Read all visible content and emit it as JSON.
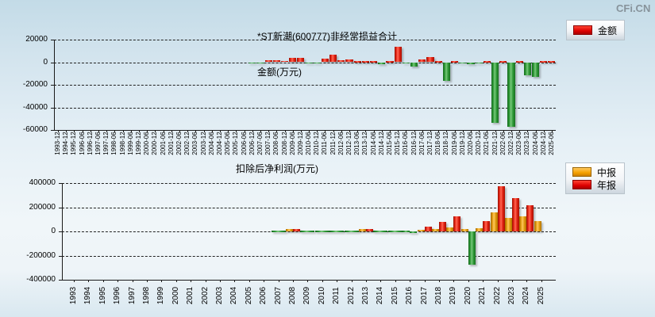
{
  "logo_text": "CFi.CN",
  "colors": {
    "positive_bar": "#dd1100",
    "negative_bar": "#2e8b2e",
    "interim_bar": "#ffaa00",
    "grid": "#222222",
    "logo": "#87939b"
  },
  "chart_data": [
    {
      "type": "bar",
      "title": "*ST新潮(600777)非经常损益合计",
      "subtitle": "金额(万元)",
      "unit": "万元",
      "legend": [
        {
          "label": "金额",
          "color": "#ee1111"
        }
      ],
      "legend_position": "top-right",
      "grid": "horizontal-dashed",
      "ylim": [
        -60000,
        20000
      ],
      "yticks": [
        "20000",
        "0",
        "-20000",
        "-40000",
        "-60000"
      ],
      "categories": [
        "1993-12",
        "1994-12",
        "1995-12",
        "1996-06",
        "1996-12",
        "1997-06",
        "1997-12",
        "1998-06",
        "1998-12",
        "1999-06",
        "1999-12",
        "2000-06",
        "2000-12",
        "2001-06",
        "2001-12",
        "2002-06",
        "2002-12",
        "2003-06",
        "2003-12",
        "2004-06",
        "2004-12",
        "2005-06",
        "2005-12",
        "2006-06",
        "2006-12",
        "2007-06",
        "2007-12",
        "2008-06",
        "2008-12",
        "2009-06",
        "2009-12",
        "2010-06",
        "2010-12",
        "2011-06",
        "2011-12",
        "2012-06",
        "2012-12",
        "2013-06",
        "2013-12",
        "2014-06",
        "2014-12",
        "2015-06",
        "2015-12",
        "2016-06",
        "2016-12",
        "2017-06",
        "2017-12",
        "2018-06",
        "2018-12",
        "2019-06",
        "2019-12",
        "2020-06",
        "2020-12",
        "2021-06",
        "2021-12",
        "2022-06",
        "2022-12",
        "2023-06",
        "2023-12",
        "2024-06",
        "2024-12",
        "2025-06"
      ],
      "values": [
        null,
        null,
        null,
        null,
        null,
        null,
        null,
        null,
        null,
        null,
        null,
        null,
        null,
        null,
        null,
        null,
        null,
        null,
        null,
        null,
        null,
        null,
        null,
        null,
        -200,
        -300,
        1500,
        1500,
        1200,
        4200,
        4200,
        -1400,
        -1400,
        3500,
        7000,
        1600,
        2800,
        500,
        300,
        300,
        -1500,
        500,
        14000,
        -300,
        -4200,
        2800,
        4400,
        700,
        -16700,
        500,
        -400,
        -1500,
        -400,
        800,
        -53500,
        800,
        -57000,
        800,
        -11300,
        -13100,
        800,
        500
      ]
    },
    {
      "type": "bar",
      "title": "扣除后净利润(万元)",
      "unit": "万元",
      "legend": [
        {
          "label": "中报",
          "color": "#ffaa00"
        },
        {
          "label": "年报",
          "color": "#ee1111"
        }
      ],
      "legend_position": "top-right",
      "grid": "horizontal-dashed",
      "ylim": [
        -400000,
        400000
      ],
      "yticks": [
        "400000",
        "200000",
        "0",
        "-200000",
        "-400000"
      ],
      "categories": [
        "1993",
        "1994",
        "1995",
        "1996",
        "1997",
        "1998",
        "1999",
        "2000",
        "2001",
        "2002",
        "2003",
        "2004",
        "2005",
        "2006",
        "2007",
        "2008",
        "2009",
        "2010",
        "2011",
        "2012",
        "2013",
        "2014",
        "2015",
        "2016",
        "2017",
        "2018",
        "2019",
        "2020",
        "2021",
        "2022",
        "2023",
        "2024",
        "2025"
      ],
      "series": [
        {
          "name": "中报",
          "color": "#ffaa00",
          "values": [
            null,
            null,
            null,
            null,
            null,
            null,
            null,
            null,
            null,
            null,
            null,
            null,
            null,
            null,
            0,
            18000,
            0,
            0,
            0,
            0,
            18000,
            0,
            0,
            0,
            15500,
            22000,
            34000,
            18000,
            28000,
            155000,
            110000,
            125000,
            85000
          ]
        },
        {
          "name": "年报",
          "color": "#dd1100",
          "negative_color": "#2e8b2e",
          "values": [
            null,
            null,
            null,
            null,
            null,
            null,
            null,
            null,
            null,
            null,
            null,
            null,
            null,
            null,
            0,
            22000,
            0,
            0,
            0,
            0,
            20000,
            0,
            0,
            -4000,
            38500,
            81000,
            122000,
            -275000,
            85000,
            372000,
            275000,
            218000,
            null
          ]
        }
      ]
    }
  ]
}
